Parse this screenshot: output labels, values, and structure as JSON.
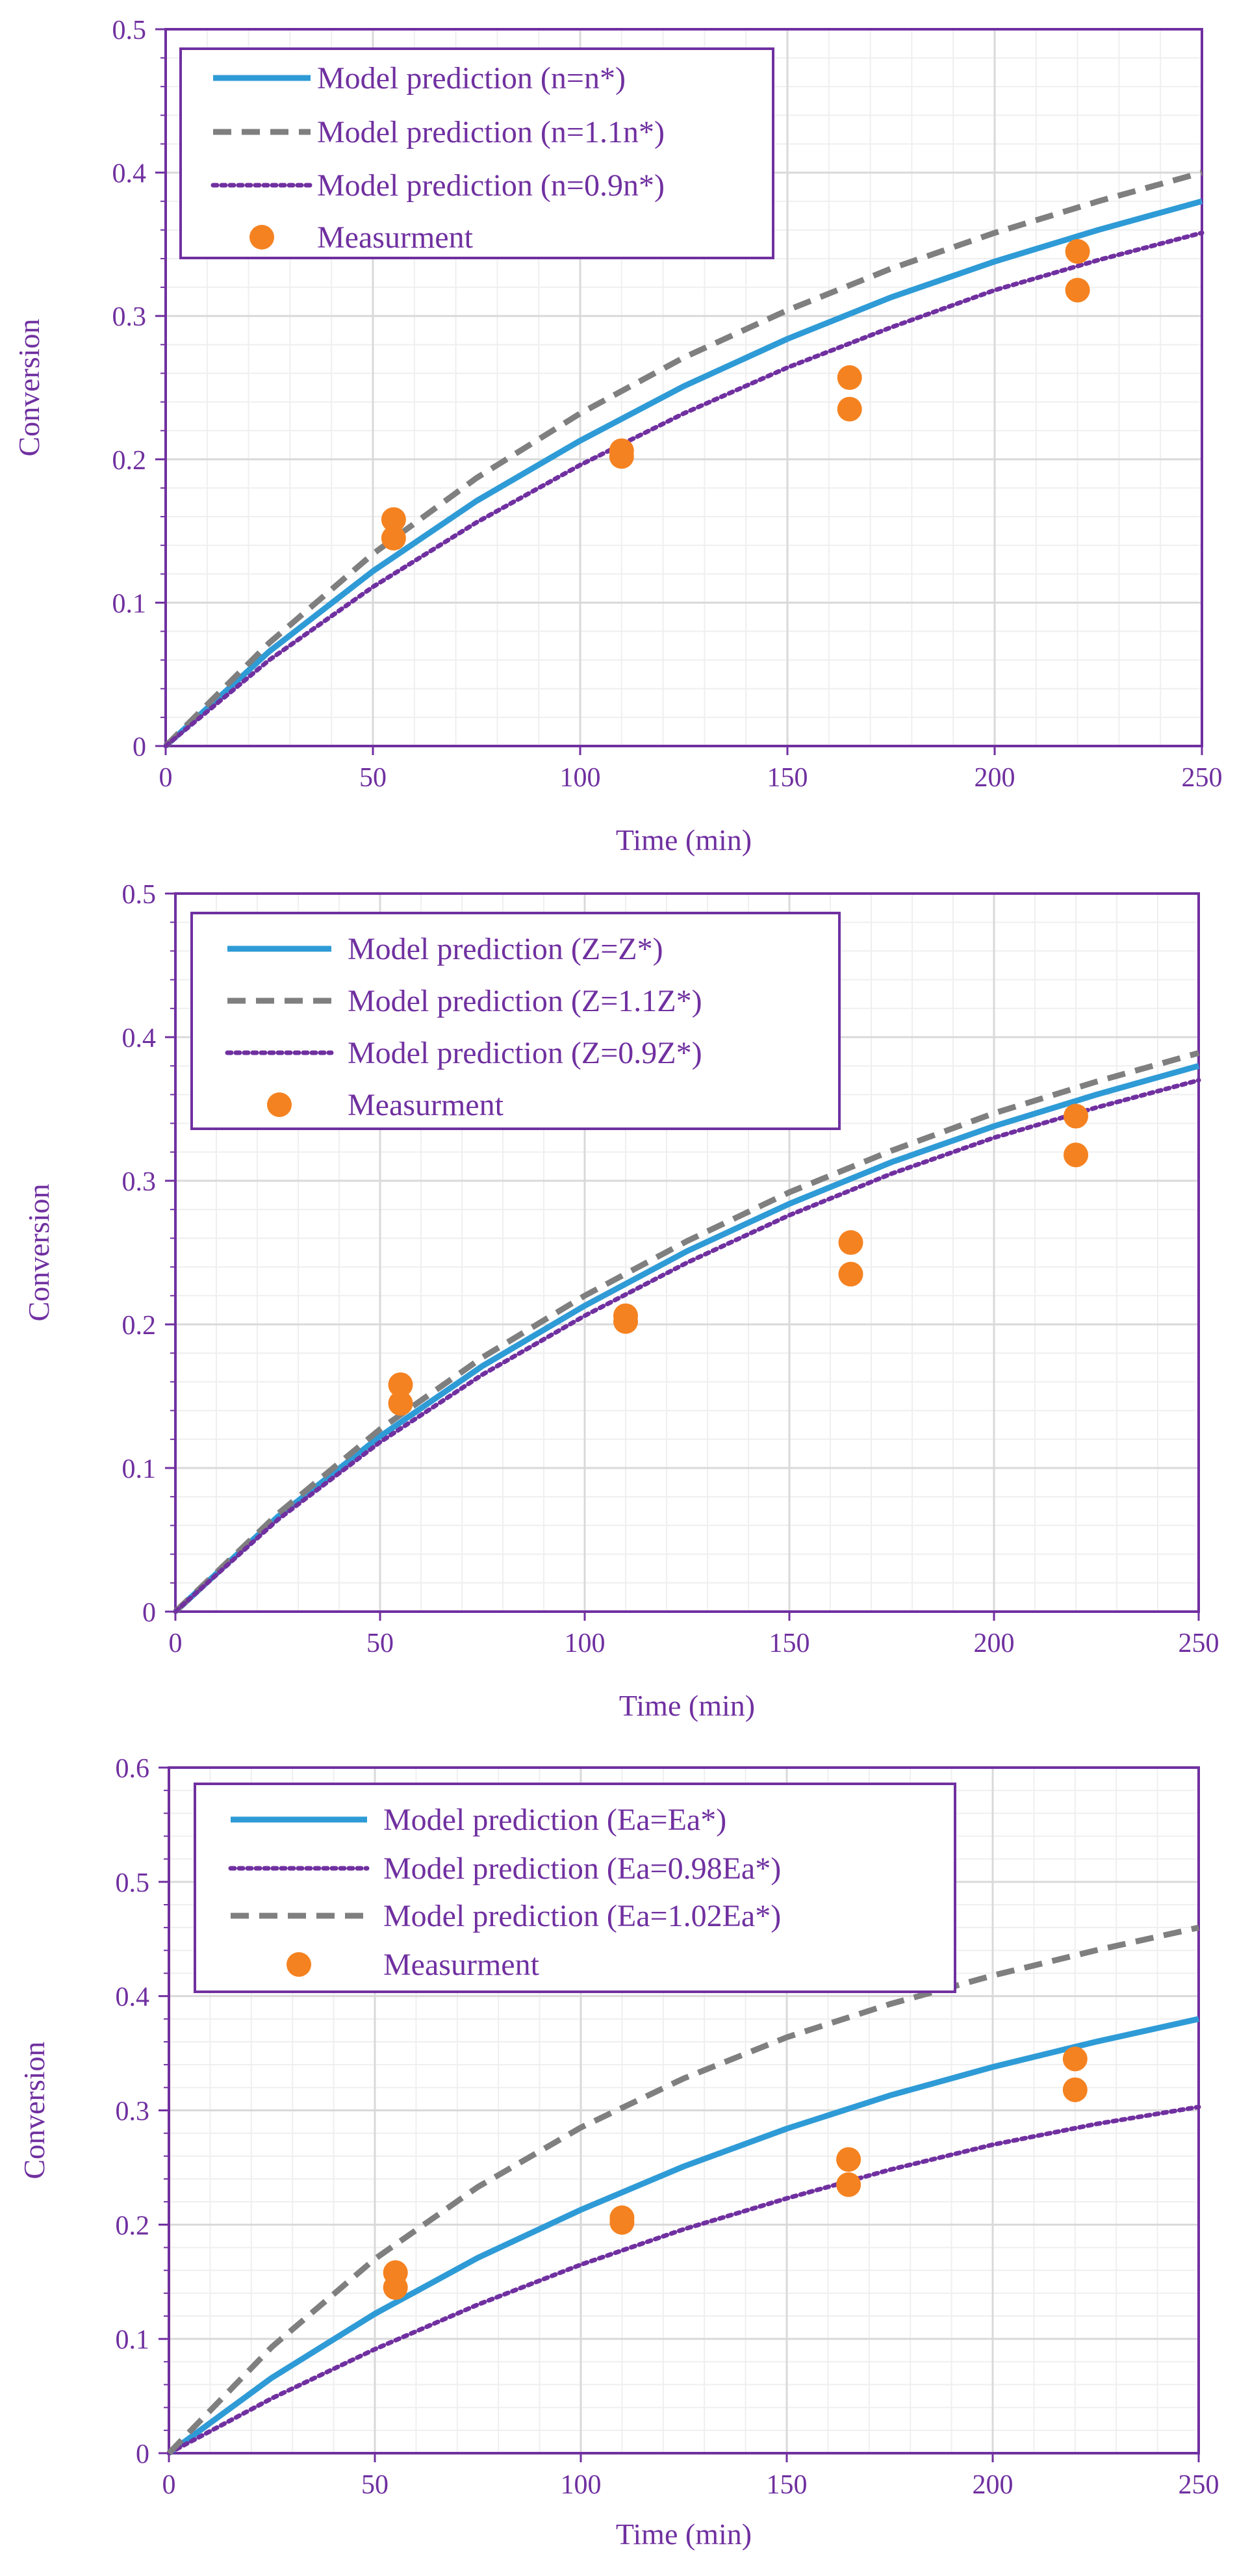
{
  "chart_data": [
    {
      "type": "line",
      "xlabel": "Time (min)",
      "ylabel": "Conversion",
      "xlim": [
        0,
        250
      ],
      "ylim": [
        0,
        0.5
      ],
      "xticks": [
        0,
        50,
        100,
        150,
        200,
        250
      ],
      "yticks": [
        0,
        0.1,
        0.2,
        0.3,
        0.4,
        0.5
      ],
      "grid": true,
      "legend_position": "top-left",
      "series": [
        {
          "name": "Model prediction (n=n*)",
          "style": "solid",
          "color": "#2E9BD6",
          "x": [
            0,
            25,
            50,
            75,
            100,
            125,
            150,
            175,
            200,
            225,
            250
          ],
          "y": [
            0,
            0.066,
            0.122,
            0.171,
            0.213,
            0.251,
            0.284,
            0.313,
            0.338,
            0.36,
            0.38
          ]
        },
        {
          "name": "Model prediction (n=1.1n*)",
          "style": "dashed",
          "color": "#7F7F7F",
          "x": [
            0,
            25,
            50,
            75,
            100,
            125,
            150,
            175,
            200,
            225,
            250
          ],
          "y": [
            0,
            0.072,
            0.134,
            0.187,
            0.232,
            0.271,
            0.304,
            0.333,
            0.358,
            0.38,
            0.4
          ]
        },
        {
          "name": "Model prediction (n=0.9n*)",
          "style": "dotted",
          "color": "#7030A0",
          "x": [
            0,
            25,
            50,
            75,
            100,
            125,
            150,
            175,
            200,
            225,
            250
          ],
          "y": [
            0,
            0.06,
            0.111,
            0.156,
            0.196,
            0.232,
            0.264,
            0.292,
            0.318,
            0.339,
            0.358
          ]
        }
      ],
      "measurements": {
        "name": "Measurment",
        "color": "#F58220",
        "x": [
          55,
          55,
          110,
          110,
          165,
          165,
          220,
          220
        ],
        "y": [
          0.158,
          0.145,
          0.206,
          0.202,
          0.257,
          0.235,
          0.345,
          0.318
        ]
      }
    },
    {
      "type": "line",
      "xlabel": "Time (min)",
      "ylabel": "Conversion",
      "xlim": [
        0,
        250
      ],
      "ylim": [
        0,
        0.5
      ],
      "xticks": [
        0,
        50,
        100,
        150,
        200,
        250
      ],
      "yticks": [
        0,
        0.1,
        0.2,
        0.3,
        0.4,
        0.5
      ],
      "grid": true,
      "legend_position": "top-left",
      "series": [
        {
          "name": "Model prediction (Z=Z*)",
          "style": "solid",
          "color": "#2E9BD6",
          "x": [
            0,
            25,
            50,
            75,
            100,
            125,
            150,
            175,
            200,
            225,
            250
          ],
          "y": [
            0,
            0.066,
            0.122,
            0.171,
            0.213,
            0.251,
            0.284,
            0.313,
            0.338,
            0.36,
            0.38
          ]
        },
        {
          "name": "Model prediction (Z=1.1Z*)",
          "style": "dashed",
          "color": "#7F7F7F",
          "x": [
            0,
            25,
            50,
            75,
            100,
            125,
            150,
            175,
            200,
            225,
            250
          ],
          "y": [
            0,
            0.068,
            0.127,
            0.177,
            0.22,
            0.258,
            0.292,
            0.321,
            0.347,
            0.369,
            0.389
          ]
        },
        {
          "name": "Model prediction (Z=0.9Z*)",
          "style": "dotted",
          "color": "#7030A0",
          "x": [
            0,
            25,
            50,
            75,
            100,
            125,
            150,
            175,
            200,
            225,
            250
          ],
          "y": [
            0,
            0.064,
            0.118,
            0.165,
            0.206,
            0.243,
            0.276,
            0.305,
            0.33,
            0.351,
            0.37
          ]
        }
      ],
      "measurements": {
        "name": "Measurment",
        "color": "#F58220",
        "x": [
          55,
          55,
          110,
          110,
          165,
          165,
          220,
          220
        ],
        "y": [
          0.158,
          0.145,
          0.206,
          0.202,
          0.257,
          0.235,
          0.345,
          0.318
        ]
      }
    },
    {
      "type": "line",
      "xlabel": "Time (min)",
      "ylabel": "Conversion",
      "xlim": [
        0,
        250
      ],
      "ylim": [
        0,
        0.6
      ],
      "xticks": [
        0,
        50,
        100,
        150,
        200,
        250
      ],
      "yticks": [
        0,
        0.1,
        0.2,
        0.3,
        0.4,
        0.5,
        0.6
      ],
      "grid": true,
      "legend_position": "top-left",
      "series": [
        {
          "name": "Model prediction (Ea=Ea*)",
          "style": "solid",
          "color": "#2E9BD6",
          "x": [
            0,
            25,
            50,
            75,
            100,
            125,
            150,
            175,
            200,
            225,
            250
          ],
          "y": [
            0,
            0.066,
            0.122,
            0.171,
            0.213,
            0.251,
            0.284,
            0.313,
            0.338,
            0.36,
            0.38
          ]
        },
        {
          "name": "Model prediction (Ea=0.98Ea*)",
          "style": "dotted",
          "color": "#7030A0",
          "x": [
            0,
            25,
            50,
            75,
            100,
            125,
            150,
            175,
            200,
            225,
            250
          ],
          "y": [
            0,
            0.048,
            0.091,
            0.13,
            0.165,
            0.196,
            0.223,
            0.248,
            0.27,
            0.288,
            0.303
          ]
        },
        {
          "name": "Model prediction (Ea=1.02Ea*)",
          "style": "dashed",
          "color": "#7F7F7F",
          "x": [
            0,
            25,
            50,
            75,
            100,
            125,
            150,
            175,
            200,
            225,
            250
          ],
          "y": [
            0,
            0.093,
            0.17,
            0.233,
            0.285,
            0.328,
            0.364,
            0.393,
            0.418,
            0.44,
            0.46
          ]
        }
      ],
      "measurements": {
        "name": "Measurment",
        "color": "#F58220",
        "x": [
          55,
          55,
          110,
          110,
          165,
          165,
          220,
          220
        ],
        "y": [
          0.158,
          0.145,
          0.206,
          0.202,
          0.257,
          0.235,
          0.345,
          0.318
        ]
      }
    }
  ]
}
